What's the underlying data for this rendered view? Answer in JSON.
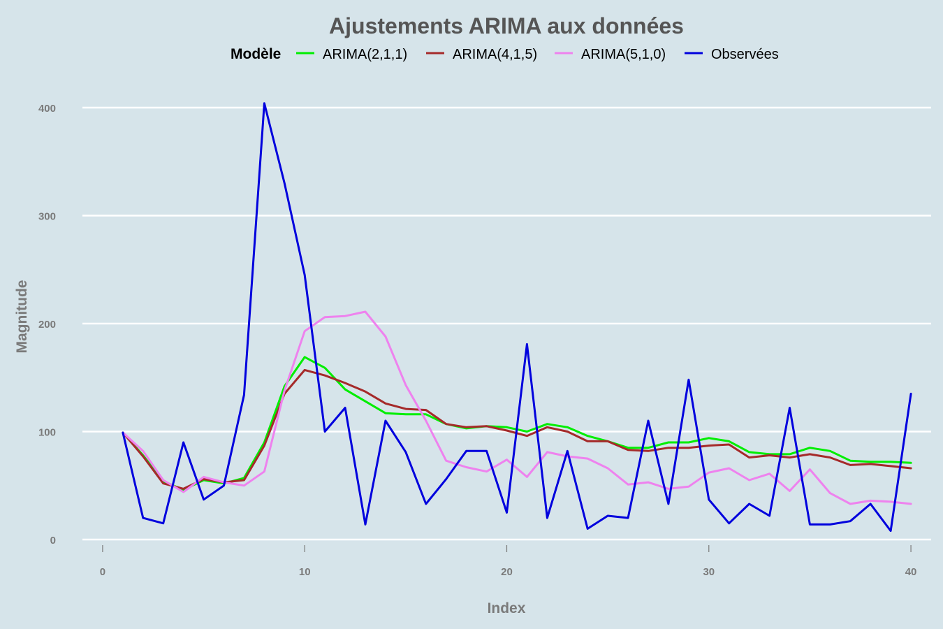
{
  "chart_data": {
    "type": "line",
    "title": "Ajustements ARIMA aux données",
    "xlabel": "Index",
    "ylabel": "Magnitude",
    "legend_title": "Modèle",
    "legend_position": "top",
    "grid": true,
    "xlim": [
      -1,
      41
    ],
    "ylim": [
      0,
      400
    ],
    "x_ticks": [
      0,
      10,
      20,
      30,
      40
    ],
    "y_ticks": [
      0,
      100,
      200,
      300,
      400
    ],
    "x": [
      1,
      2,
      3,
      4,
      5,
      6,
      7,
      8,
      9,
      10,
      11,
      12,
      13,
      14,
      15,
      16,
      17,
      18,
      19,
      20,
      21,
      22,
      23,
      24,
      25,
      26,
      27,
      28,
      29,
      30,
      31,
      32,
      33,
      34,
      35,
      36,
      37,
      38,
      39,
      40
    ],
    "series": [
      {
        "name": "ARIMA(2,1,1)",
        "color": "#00ee00",
        "values": [
          99,
          78,
          54,
          46,
          55,
          52,
          57,
          90,
          142,
          169,
          159,
          139,
          128,
          117,
          116,
          116,
          107,
          103,
          105,
          104,
          100,
          107,
          104,
          96,
          91,
          85,
          85,
          90,
          90,
          94,
          91,
          81,
          79,
          79,
          85,
          82,
          73,
          72,
          72,
          71
        ]
      },
      {
        "name": "ARIMA(4,1,5)",
        "color": "#a52a2a",
        "values": [
          99,
          77,
          52,
          47,
          56,
          53,
          55,
          87,
          135,
          157,
          152,
          145,
          137,
          126,
          121,
          120,
          107,
          104,
          105,
          101,
          96,
          104,
          100,
          91,
          91,
          83,
          82,
          85,
          85,
          87,
          88,
          76,
          78,
          76,
          79,
          76,
          69,
          70,
          68,
          66
        ]
      },
      {
        "name": "ARIMA(5,1,0)",
        "color": "#ee82ee",
        "values": [
          99,
          82,
          55,
          44,
          58,
          53,
          50,
          63,
          138,
          193,
          206,
          207,
          211,
          188,
          143,
          110,
          73,
          67,
          63,
          74,
          58,
          81,
          77,
          75,
          66,
          51,
          53,
          47,
          49,
          62,
          66,
          55,
          61,
          45,
          65,
          43,
          33,
          36,
          35,
          33
        ]
      },
      {
        "name": "Observées",
        "color": "#0000dd",
        "values": [
          99,
          20,
          15,
          90,
          37,
          50,
          134,
          404,
          330,
          245,
          100,
          122,
          14,
          110,
          81,
          33,
          56,
          82,
          82,
          25,
          181,
          20,
          82,
          10,
          22,
          20,
          110,
          33,
          148,
          37,
          15,
          33,
          22,
          122,
          14,
          14,
          17,
          33,
          8,
          135
        ]
      }
    ]
  }
}
